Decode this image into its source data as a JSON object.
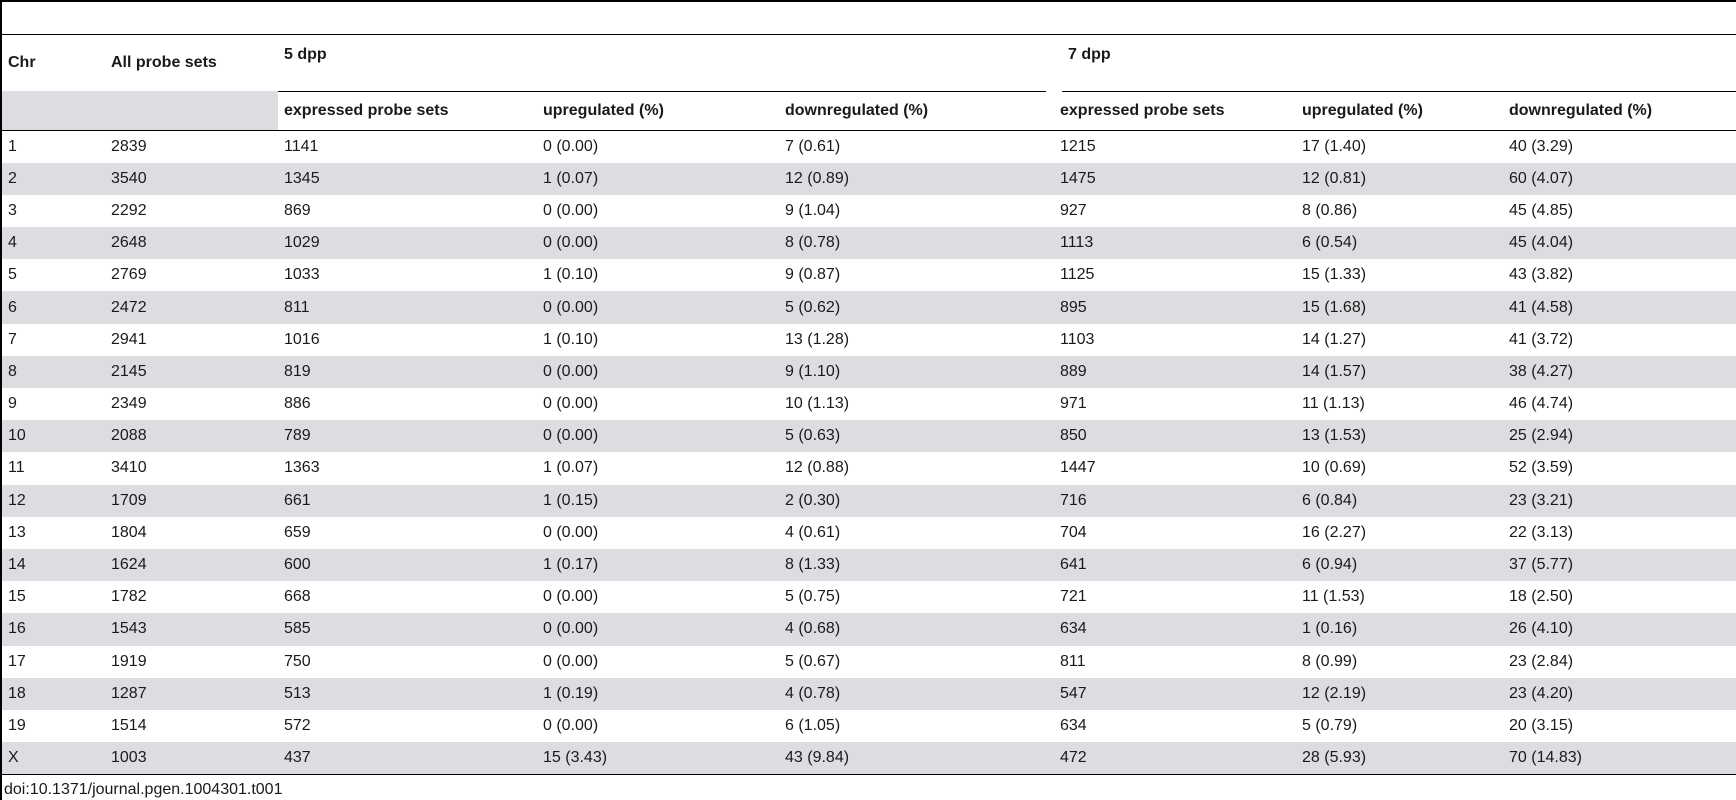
{
  "table": {
    "col_chr": "Chr",
    "col_all": "All probe sets",
    "group_5dpp": "5 dpp",
    "group_7dpp": "7 dpp",
    "sub_expressed": "expressed probe sets",
    "sub_up": "upregulated (%)",
    "sub_down": "downregulated (%)",
    "rows": [
      [
        "1",
        "2839",
        "1141",
        "0 (0.00)",
        "7 (0.61)",
        "1215",
        "17 (1.40)",
        "40 (3.29)"
      ],
      [
        "2",
        "3540",
        "1345",
        "1 (0.07)",
        "12 (0.89)",
        "1475",
        "12 (0.81)",
        "60 (4.07)"
      ],
      [
        "3",
        "2292",
        "869",
        "0 (0.00)",
        "9 (1.04)",
        "927",
        "8 (0.86)",
        "45 (4.85)"
      ],
      [
        "4",
        "2648",
        "1029",
        "0 (0.00)",
        "8 (0.78)",
        "1113",
        "6 (0.54)",
        "45 (4.04)"
      ],
      [
        "5",
        "2769",
        "1033",
        "1 (0.10)",
        "9 (0.87)",
        "1125",
        "15 (1.33)",
        "43 (3.82)"
      ],
      [
        "6",
        "2472",
        "811",
        "0 (0.00)",
        "5 (0.62)",
        "895",
        "15 (1.68)",
        "41 (4.58)"
      ],
      [
        "7",
        "2941",
        "1016",
        "1 (0.10)",
        "13 (1.28)",
        "1103",
        "14 (1.27)",
        "41 (3.72)"
      ],
      [
        "8",
        "2145",
        "819",
        "0 (0.00)",
        "9 (1.10)",
        "889",
        "14 (1.57)",
        "38 (4.27)"
      ],
      [
        "9",
        "2349",
        "886",
        "0 (0.00)",
        "10 (1.13)",
        "971",
        "11 (1.13)",
        "46 (4.74)"
      ],
      [
        "10",
        "2088",
        "789",
        "0 (0.00)",
        "5 (0.63)",
        "850",
        "13 (1.53)",
        "25 (2.94)"
      ],
      [
        "11",
        "3410",
        "1363",
        "1 (0.07)",
        "12 (0.88)",
        "1447",
        "10 (0.69)",
        "52 (3.59)"
      ],
      [
        "12",
        "1709",
        "661",
        "1 (0.15)",
        "2 (0.30)",
        "716",
        "6 (0.84)",
        "23 (3.21)"
      ],
      [
        "13",
        "1804",
        "659",
        "0 (0.00)",
        "4 (0.61)",
        "704",
        "16 (2.27)",
        "22 (3.13)"
      ],
      [
        "14",
        "1624",
        "600",
        "1 (0.17)",
        "8 (1.33)",
        "641",
        "6 (0.94)",
        "37 (5.77)"
      ],
      [
        "15",
        "1782",
        "668",
        "0 (0.00)",
        "5 (0.75)",
        "721",
        "11 (1.53)",
        "18 (2.50)"
      ],
      [
        "16",
        "1543",
        "585",
        "0 (0.00)",
        "4 (0.68)",
        "634",
        "1 (0.16)",
        "26 (4.10)"
      ],
      [
        "17",
        "1919",
        "750",
        "0 (0.00)",
        "5 (0.67)",
        "811",
        "8 (0.99)",
        "23 (2.84)"
      ],
      [
        "18",
        "1287",
        "513",
        "1 (0.19)",
        "4 (0.78)",
        "547",
        "12 (2.19)",
        "23 (4.20)"
      ],
      [
        "19",
        "1514",
        "572",
        "0 (0.00)",
        "6 (1.05)",
        "634",
        "5 (0.79)",
        "20 (3.15)"
      ],
      [
        "X",
        "1003",
        "437",
        "15 (3.43)",
        "43 (9.84)",
        "472",
        "28 (5.93)",
        "70 (14.83)"
      ]
    ]
  },
  "footer": {
    "doi": "doi:10.1371/journal.pgen.1004301.t001"
  },
  "colors": {
    "stripe": "#dcdde0",
    "rule": "#000000"
  }
}
